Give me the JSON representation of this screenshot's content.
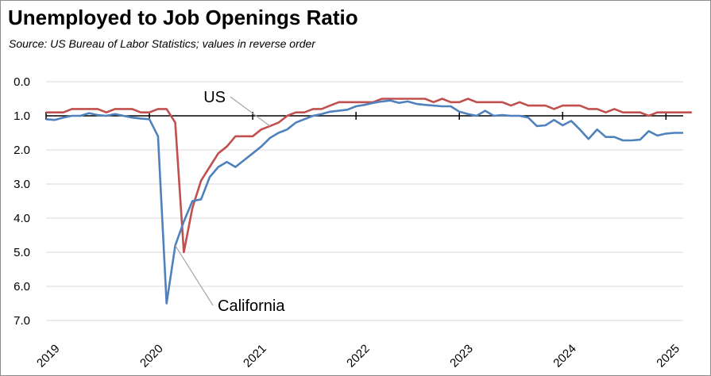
{
  "chart_data": {
    "type": "line",
    "title": "Unemployed to Job Openings Ratio",
    "subtitle": "Source:  US Bureau of Labor Statistics; values in reverse order",
    "xlabel": "",
    "ylabel": "",
    "y_inverted": true,
    "ylim": [
      0,
      7
    ],
    "yticks": [
      "0.0",
      "1.0",
      "2.0",
      "3.0",
      "4.0",
      "5.0",
      "6.0",
      "7.0"
    ],
    "xticks": [
      "2019",
      "2020",
      "2021",
      "2022",
      "2023",
      "2024",
      "2025"
    ],
    "x_start": 2019.0,
    "x_step": 0.0833333,
    "grid": true,
    "reference_line": 1.0,
    "annotations": [
      {
        "text": "US",
        "series": "US",
        "month_index": 26
      },
      {
        "text": "California",
        "series": "California",
        "month_index": 15
      }
    ],
    "series": [
      {
        "name": "US",
        "color": "#c0504d",
        "values": [
          0.9,
          0.9,
          0.9,
          0.8,
          0.8,
          0.8,
          0.8,
          0.9,
          0.8,
          0.8,
          0.8,
          0.9,
          0.9,
          0.8,
          0.8,
          1.2,
          5.0,
          3.7,
          2.9,
          2.5,
          2.1,
          1.9,
          1.6,
          1.6,
          1.6,
          1.4,
          1.3,
          1.2,
          1.0,
          0.9,
          0.9,
          0.8,
          0.8,
          0.7,
          0.6,
          0.6,
          0.6,
          0.6,
          0.6,
          0.5,
          0.5,
          0.5,
          0.5,
          0.5,
          0.5,
          0.6,
          0.5,
          0.6,
          0.6,
          0.5,
          0.6,
          0.6,
          0.6,
          0.6,
          0.7,
          0.6,
          0.7,
          0.7,
          0.7,
          0.8,
          0.7,
          0.7,
          0.7,
          0.8,
          0.8,
          0.9,
          0.8,
          0.9,
          0.9,
          0.9,
          1.0,
          0.9,
          0.9,
          0.9,
          0.9,
          0.9
        ]
      },
      {
        "name": "California",
        "color": "#4f81bd",
        "values": [
          1.1,
          1.12,
          1.05,
          1.0,
          1.0,
          0.92,
          0.98,
          1.0,
          0.95,
          1.0,
          1.05,
          1.08,
          1.1,
          1.6,
          6.5,
          4.8,
          4.1,
          3.5,
          3.45,
          2.8,
          2.5,
          2.35,
          2.5,
          2.3,
          2.1,
          1.9,
          1.65,
          1.5,
          1.4,
          1.2,
          1.1,
          1.0,
          0.95,
          0.88,
          0.85,
          0.82,
          0.72,
          0.68,
          0.62,
          0.58,
          0.55,
          0.62,
          0.58,
          0.65,
          0.68,
          0.7,
          0.72,
          0.72,
          0.88,
          0.95,
          1.0,
          0.85,
          1.0,
          0.98,
          1.0,
          1.0,
          1.05,
          1.3,
          1.28,
          1.12,
          1.28,
          1.15,
          1.4,
          1.68,
          1.4,
          1.62,
          1.62,
          1.72,
          1.72,
          1.7,
          1.45,
          1.58,
          1.52,
          1.5,
          1.5
        ]
      }
    ]
  }
}
